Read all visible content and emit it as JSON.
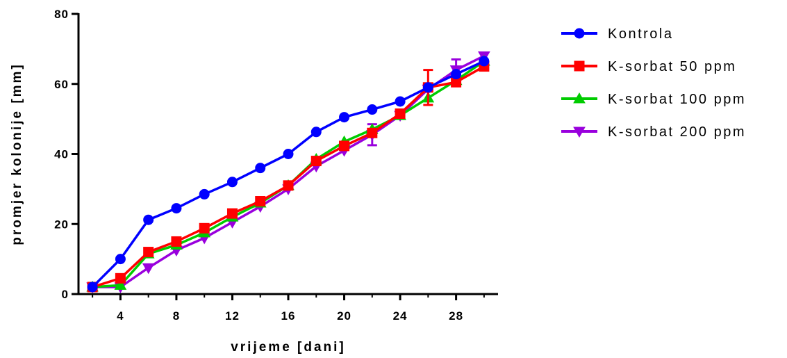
{
  "chart_data": {
    "type": "line",
    "xlabel": "vrijeme [dani]",
    "ylabel": "promjer kolonije [mm]",
    "xlim": [
      1,
      31
    ],
    "ylim": [
      0,
      80
    ],
    "x_ticks": [
      4,
      8,
      12,
      16,
      20,
      24,
      28
    ],
    "x_tick_labels": [
      "4",
      "8",
      "12",
      "16",
      "20",
      "24",
      "28"
    ],
    "y_ticks": [
      0,
      20,
      40,
      60,
      80
    ],
    "y_tick_labels": [
      "0",
      "20",
      "40",
      "60",
      "80"
    ],
    "grid": false,
    "legend_position": "right",
    "x": [
      2,
      4,
      6,
      8,
      10,
      12,
      14,
      16,
      18,
      20,
      22,
      24,
      26,
      28,
      30
    ],
    "series": [
      {
        "name": "Kontrola",
        "color": "#0000ff",
        "marker": "circle",
        "values": [
          2,
          10,
          21.2,
          24.5,
          28.5,
          32,
          36,
          40,
          46.3,
          50.5,
          52.7,
          55,
          59,
          62.8,
          66.5
        ],
        "errors": [
          0,
          0,
          0,
          0,
          0,
          0,
          0,
          0,
          0,
          0,
          0,
          0,
          0,
          0,
          0
        ]
      },
      {
        "name": "K-sorbat 50 ppm",
        "color": "#ff0000",
        "marker": "square",
        "values": [
          2,
          4.5,
          12,
          15,
          18.8,
          23,
          26.5,
          31,
          38,
          42.3,
          46,
          51.5,
          59,
          60.5,
          65
        ],
        "errors": [
          0,
          0,
          0,
          0,
          0,
          0,
          0,
          0,
          0,
          0,
          0,
          0,
          5,
          0,
          0
        ]
      },
      {
        "name": "K-sorbat 100 ppm",
        "color": "#00cc00",
        "marker": "triangle-up",
        "values": [
          2,
          2.5,
          11.5,
          14,
          17.5,
          22,
          26,
          31,
          38.5,
          43.5,
          47,
          51,
          56,
          61,
          66.5
        ],
        "errors": [
          0,
          0,
          0,
          0,
          0,
          0,
          0,
          0,
          0,
          0,
          0,
          0,
          0,
          0,
          0
        ]
      },
      {
        "name": "K-sorbat 200 ppm",
        "color": "#9900dd",
        "marker": "triangle-down",
        "values": [
          2,
          2,
          7.5,
          12.5,
          16,
          20.5,
          25,
          30,
          36.5,
          41,
          45.5,
          51,
          58.5,
          64,
          68
        ],
        "errors": [
          0,
          0,
          0,
          0,
          0,
          0,
          0,
          0,
          0,
          0,
          3,
          0,
          0,
          3,
          0
        ]
      }
    ]
  }
}
